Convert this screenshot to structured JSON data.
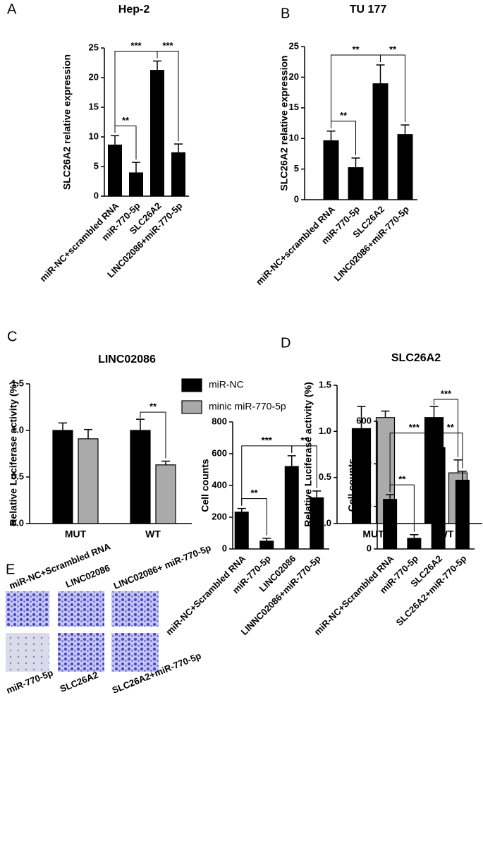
{
  "chart_data": [
    {
      "type": "bar",
      "panel": "A",
      "title": "Hep-2",
      "y_label": "SLC26A2 relative expression",
      "categories": [
        "miR-NC+scrambled RNA",
        "miR-770-5p",
        "SLC26A2",
        "LINC02086+miR-770-5p"
      ],
      "values": [
        8.7,
        4.0,
        21.3,
        7.4
      ],
      "errors": [
        1.5,
        1.7,
        1.5,
        1.4
      ],
      "color": "#000000",
      "ylim": [
        0,
        25
      ],
      "yticks": [
        0,
        5,
        10,
        15,
        20,
        25
      ],
      "comparisons": [
        {
          "groups": [
            "miR-NC+scrambled RNA",
            "miR-770-5p"
          ],
          "label": "**"
        },
        {
          "groups": [
            "miR-NC+scrambled RNA",
            "SLC26A2"
          ],
          "label": "***"
        },
        {
          "groups": [
            "SLC26A2",
            "LINC02086+miR-770-5p"
          ],
          "label": "***"
        }
      ]
    },
    {
      "type": "bar",
      "panel": "B",
      "title": "TU 177",
      "y_label": "SLC26A2 relative expression",
      "categories": [
        "miR-NC+scrambled RNA",
        "miR-770-5p",
        "SLC26A2",
        "LINC02086+miR-770-5p"
      ],
      "values": [
        9.7,
        5.3,
        19.0,
        10.7
      ],
      "errors": [
        1.5,
        1.5,
        3.0,
        1.5
      ],
      "color": "#000000",
      "ylim": [
        0,
        25
      ],
      "yticks": [
        0,
        5,
        10,
        15,
        20,
        25
      ],
      "comparisons": [
        {
          "groups": [
            "miR-NC+scrambled RNA",
            "miR-770-5p"
          ],
          "label": "**"
        },
        {
          "groups": [
            "miR-NC+scrambled RNA",
            "SLC26A2"
          ],
          "label": "**"
        },
        {
          "groups": [
            "SLC26A2",
            "LINC02086+miR-770-5p"
          ],
          "label": "**"
        }
      ]
    },
    {
      "type": "grouped-bar",
      "panel": "C",
      "title": "LINC02086",
      "y_label": "Relative Luciferase activity (%)",
      "categories": [
        "MUT",
        "WT"
      ],
      "legend": true,
      "series": [
        {
          "name": "miR-NC",
          "color": "#000000",
          "values": [
            1.0,
            1.0
          ],
          "errors": [
            0.08,
            0.12
          ]
        },
        {
          "name": "minic miR-770-5p",
          "color": "#aaaaaa",
          "values": [
            0.91,
            0.63
          ],
          "errors": [
            0.1,
            0.04
          ]
        }
      ],
      "ylim": [
        0,
        1.5
      ],
      "yticks": [
        {
          "value": 0,
          "label": "0.0"
        },
        {
          "value": 0.5,
          "label": "0.5"
        },
        {
          "value": 1,
          "label": "1.0"
        },
        {
          "value": 1.5,
          "label": "1.5"
        }
      ],
      "comparisons": [
        {
          "category": "WT",
          "label": "**"
        }
      ]
    },
    {
      "type": "grouped-bar",
      "panel": "D",
      "title": "SLC26A2",
      "y_label": "Relative Luciferase activity (%)",
      "categories": [
        "MUT",
        "WT"
      ],
      "legend": false,
      "series": [
        {
          "name": "miR-NC",
          "color": "#000000",
          "values": [
            1.03,
            1.15
          ],
          "errors": [
            0.24,
            0.12
          ]
        },
        {
          "name": "minic miR-770-5p",
          "color": "#aaaaaa",
          "values": [
            1.15,
            0.55
          ],
          "errors": [
            0.07,
            0.14
          ]
        }
      ],
      "ylim": [
        0,
        1.5
      ],
      "yticks": [
        {
          "value": 0,
          "label": "0.0"
        },
        {
          "value": 0.5,
          "label": "0.5"
        },
        {
          "value": 1,
          "label": "1.0"
        },
        {
          "value": 1.5,
          "label": "1.5"
        }
      ],
      "comparisons": [
        {
          "category": "WT",
          "label": "***"
        }
      ]
    },
    {
      "type": "bar",
      "y_label": "Cell counts",
      "categories": [
        "miR-NC+Scrambled RNA",
        "miR-770-5p",
        "LINC02086",
        "LINNC02086+miR-770-5p"
      ],
      "values": [
        235,
        52,
        522,
        325
      ],
      "errors": [
        20,
        15,
        65,
        40
      ],
      "color": "#000000",
      "ylim": [
        0,
        800
      ],
      "yticks": [
        0,
        200,
        400,
        600,
        800
      ],
      "comparisons": [
        {
          "groups": [
            "miR-NC+Scrambled RNA",
            "miR-770-5p"
          ],
          "label": "**"
        },
        {
          "groups": [
            "miR-NC+Scrambled RNA",
            "LINC02086"
          ],
          "label": "***"
        },
        {
          "groups": [
            "LINC02086",
            "LINNC02086+miR-770-5p"
          ],
          "label": "**"
        }
      ]
    },
    {
      "type": "bar",
      "y_label": "Cell counts",
      "categories": [
        "miR-NC+Scrambled RNA",
        "miR-770-5p",
        "SLC26A2",
        "SLC26A2+miR-770-5p"
      ],
      "values": [
        235,
        52,
        478,
        325
      ],
      "errors": [
        20,
        15,
        20,
        40
      ],
      "color": "#000000",
      "ylim": [
        0,
        600
      ],
      "yticks": [
        0,
        200,
        400,
        600
      ],
      "comparisons": [
        {
          "groups": [
            "miR-NC+Scrambled RNA",
            "miR-770-5p"
          ],
          "label": "**"
        },
        {
          "groups": [
            "miR-NC+Scrambled RNA",
            "SLC26A2"
          ],
          "label": "***"
        },
        {
          "groups": [
            "SLC26A2",
            "SLC26A2+miR-770-5p"
          ],
          "label": "**"
        }
      ]
    }
  ],
  "image_panel": {
    "panel": "E",
    "labels": [
      "miR-NC+Scrambled RNA",
      "LINC02086",
      "LINC02086+ miR-770-5p",
      "miR-770-5p",
      "SLC26A2",
      "SLC26A2+miR-770-5p"
    ]
  }
}
